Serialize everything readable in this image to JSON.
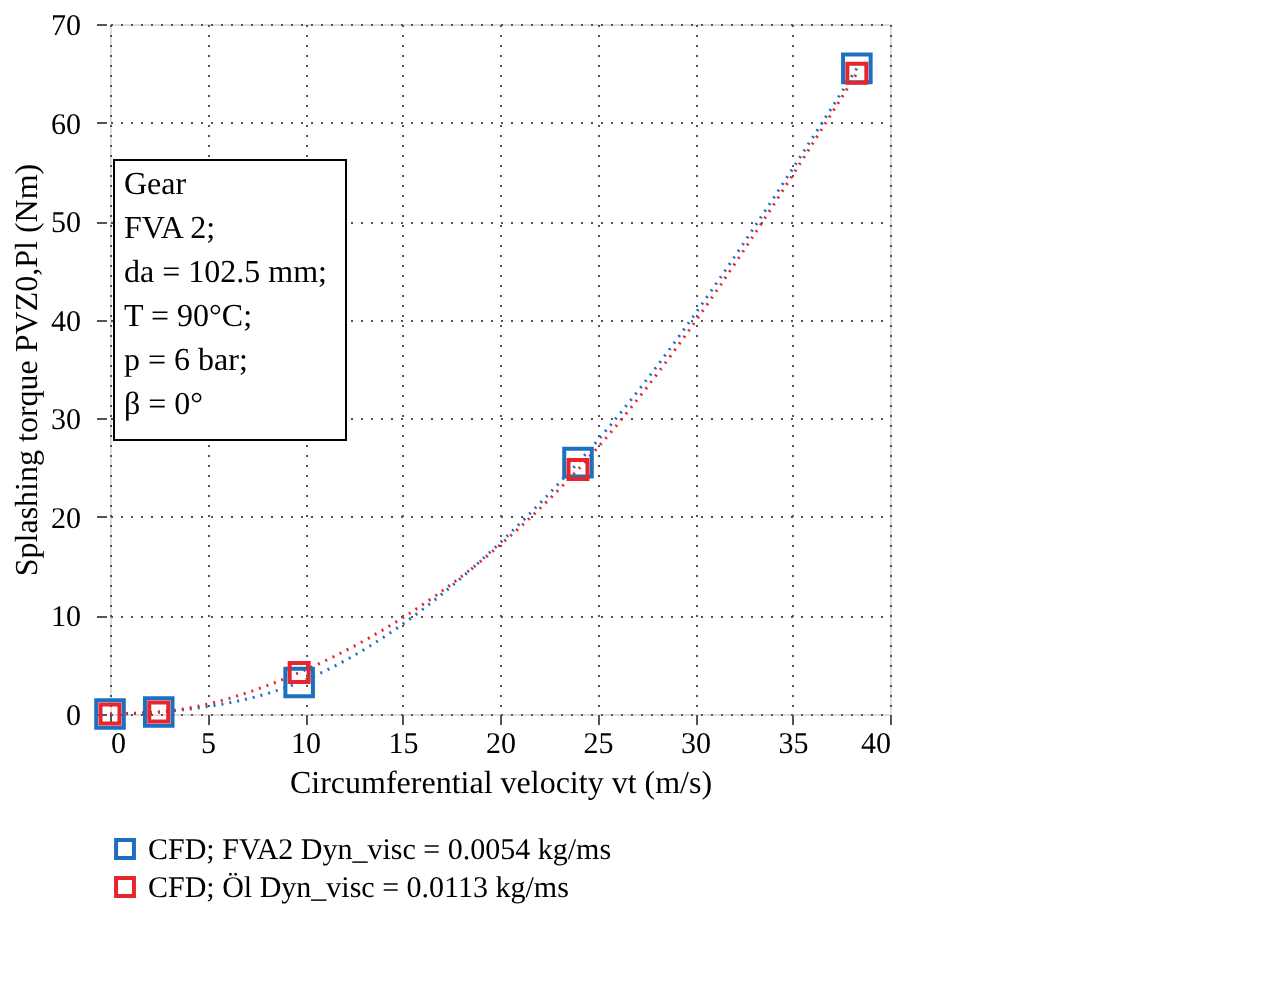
{
  "chart_data": {
    "type": "line",
    "xlabel": "Circumferential velocity vt (m/s)",
    "ylabel": "Splashing torque PVZ0,Pl (Nm)",
    "x": [
      0,
      2.5,
      9.7,
      24,
      38.3
    ],
    "series": [
      {
        "name": "CFD; FVA2   Dyn_visc = 0.0054 kg/ms",
        "color": "#1f6fc0",
        "values": [
          0,
          0.2,
          3.2,
          25.5,
          65.5
        ]
      },
      {
        "name": "CFD; Öl        Dyn_visc = 0.0113 kg/ms",
        "color": "#e8242c",
        "values": [
          0,
          0.2,
          4.2,
          24.8,
          65
        ]
      }
    ],
    "xlim": [
      0,
      40
    ],
    "xticks": [
      0,
      5,
      10,
      15,
      20,
      25,
      30,
      35,
      40
    ],
    "ylim": [
      0,
      70
    ],
    "yticks": [
      0,
      10,
      20,
      30,
      40,
      50,
      60,
      70
    ],
    "annotations": [
      "Gear",
      "FVA 2;",
      "da = 102.5 mm;",
      "T = 90°C;",
      "p = 6 bar;",
      "β = 0°"
    ],
    "grid": true,
    "legend": "bottom",
    "marker": "square",
    "line_style": "dotted"
  }
}
